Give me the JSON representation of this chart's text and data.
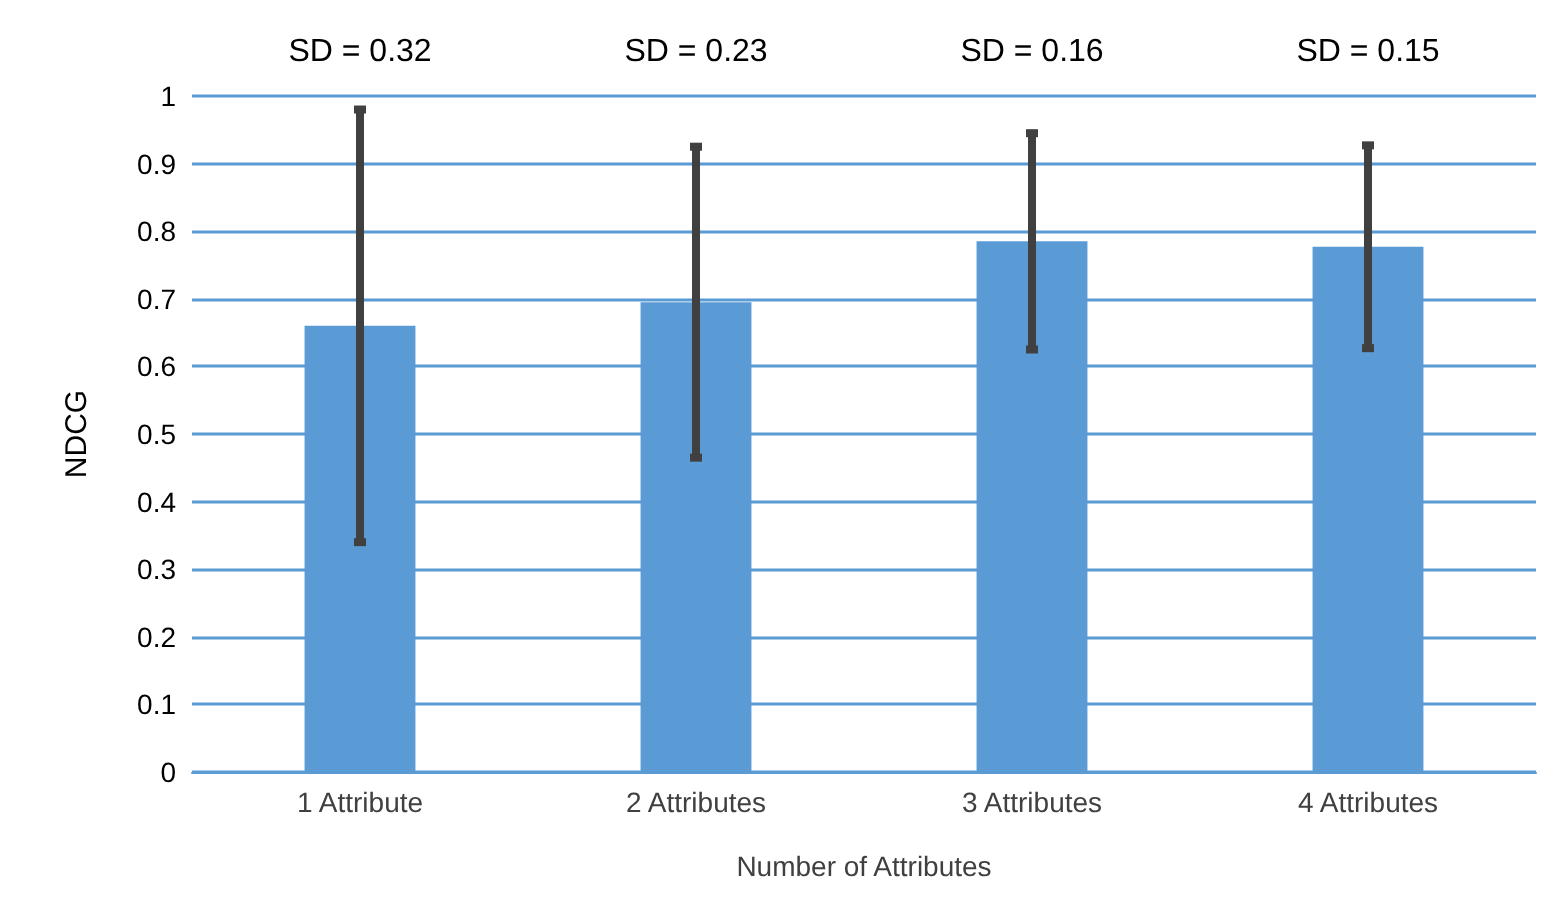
{
  "chart_data": {
    "type": "bar",
    "xlabel": "Number of Attributes",
    "ylabel": "NDCG",
    "categories": [
      "1 Attribute",
      "2 Attributes",
      "3 Attributes",
      "4 Attributes"
    ],
    "values": [
      0.66,
      0.695,
      0.785,
      0.777
    ],
    "errors": [
      0.32,
      0.23,
      0.16,
      0.15
    ],
    "color": "#5b9bd5",
    "ylim": [
      0,
      1
    ],
    "yticks": [
      0,
      0.1,
      0.2,
      0.3,
      0.4,
      0.5,
      0.6,
      0.7,
      0.8,
      0.9,
      1
    ],
    "grid": "y",
    "annotations": [
      "SD = 0.32",
      "SD = 0.23",
      "SD = 0.16",
      "SD = 0.15"
    ]
  }
}
